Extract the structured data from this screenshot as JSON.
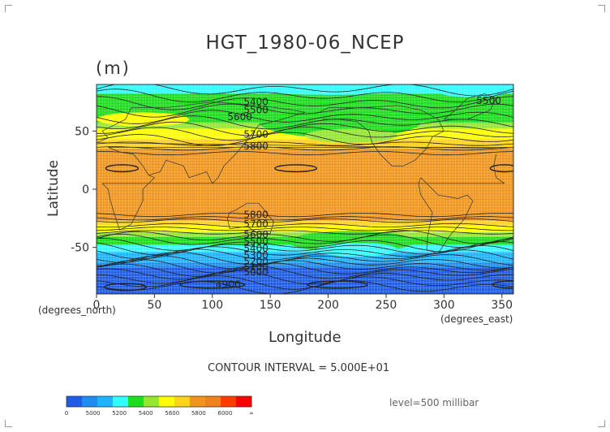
{
  "chart_data": {
    "type": "heatmap",
    "title": "HGT_1980-06_NCEP",
    "units": "(m)",
    "xlabel": "Longitude",
    "ylabel": "Latitude",
    "x_unit_label": "(degrees_east)",
    "y_unit_label": "(degrees_north)",
    "xlim": [
      0,
      360
    ],
    "ylim": [
      -90,
      90
    ],
    "x_ticks": [
      0,
      50,
      100,
      150,
      200,
      250,
      300,
      350
    ],
    "y_ticks": [
      50,
      0,
      -50
    ],
    "grid": true,
    "contour_interval_text": "CONTOUR INTERVAL = 5.000E+01",
    "level_text": "level=500 millibar",
    "contour_labels": [
      {
        "text": "5400",
        "lon": 127,
        "lat": 75
      },
      {
        "text": "5500",
        "lon": 127,
        "lat": 68
      },
      {
        "text": "5600",
        "lon": 113,
        "lat": 62
      },
      {
        "text": "5700",
        "lon": 127,
        "lat": 47
      },
      {
        "text": "5800",
        "lon": 127,
        "lat": 37
      },
      {
        "text": "5500",
        "lon": 328,
        "lat": 76
      },
      {
        "text": "5800",
        "lon": 127,
        "lat": -22
      },
      {
        "text": "5700",
        "lon": 127,
        "lat": -30
      },
      {
        "text": "5600",
        "lon": 127,
        "lat": -39
      },
      {
        "text": "5500",
        "lon": 127,
        "lat": -45
      },
      {
        "text": "5400",
        "lon": 127,
        "lat": -51
      },
      {
        "text": "5300",
        "lon": 127,
        "lat": -57
      },
      {
        "text": "5200",
        "lon": 127,
        "lat": -62
      },
      {
        "text": "5100",
        "lon": 127,
        "lat": -67
      },
      {
        "text": "5000",
        "lon": 127,
        "lat": -71
      },
      {
        "text": "4900",
        "lon": 103,
        "lat": -82
      }
    ],
    "colorbar": {
      "ticks": [
        "0",
        "5000",
        "5200",
        "5400",
        "5600",
        "5800",
        "6000",
        "∞"
      ],
      "colors": [
        "#1e5ce6",
        "#1e8cf0",
        "#1eb4ff",
        "#32ffff",
        "#1edc1e",
        "#96e632",
        "#ffff00",
        "#ffd21e",
        "#f0961e",
        "#f0821e",
        "#ff3c00",
        "#ff0000"
      ]
    },
    "bands": [
      {
        "lat_top": 90,
        "color": "#32ffff"
      },
      {
        "lat_top": 82,
        "color": "#1edc1e"
      },
      {
        "lat_top": 57,
        "color": "#96e632"
      },
      {
        "lat_top": 52,
        "color": "#ffff00"
      },
      {
        "lat_top": 43,
        "color": "#ffd21e"
      },
      {
        "lat_top": 35,
        "color": "#f0961e"
      },
      {
        "lat_top": -27,
        "color": "#ffd21e"
      },
      {
        "lat_top": -31,
        "color": "#ffff00"
      },
      {
        "lat_top": -37,
        "color": "#96e632"
      },
      {
        "lat_top": -41,
        "color": "#1edc1e"
      },
      {
        "lat_top": -48,
        "color": "#32ffff"
      },
      {
        "lat_top": -54,
        "color": "#1eb4ff"
      },
      {
        "lat_top": -63,
        "color": "#1e8cf0"
      },
      {
        "lat_top": -67,
        "color": "#1e5ce6"
      }
    ]
  }
}
